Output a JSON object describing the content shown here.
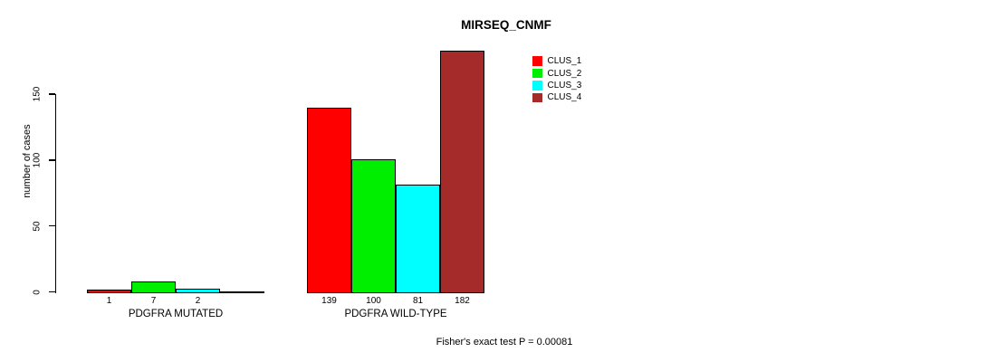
{
  "title": "MIRSEQ_CNMF",
  "y_axis": {
    "label": "number of cases",
    "ticks": [
      "0",
      "50",
      "100",
      "150"
    ]
  },
  "legend": [
    {
      "label": "CLUS_1",
      "color": "#ff0000"
    },
    {
      "label": "CLUS_2",
      "color": "#00ee00"
    },
    {
      "label": "CLUS_3",
      "color": "#00ffff"
    },
    {
      "label": "CLUS_4",
      "color": "#a52a2a"
    }
  ],
  "footer": "Fisher's exact test P = 0.00081",
  "chart_data": {
    "type": "bar",
    "title": "MIRSEQ_CNMF",
    "xlabel": "",
    "ylabel": "number of cases",
    "ylim": [
      0,
      150
    ],
    "grid": false,
    "legend_position": "top-right",
    "categories": [
      "PDGFRA MUTATED",
      "PDGFRA WILD-TYPE"
    ],
    "series": [
      {
        "name": "CLUS_1",
        "color": "#ff0000",
        "values": [
          1,
          139
        ]
      },
      {
        "name": "CLUS_2",
        "color": "#00ee00",
        "values": [
          7,
          100
        ]
      },
      {
        "name": "CLUS_3",
        "color": "#00ffff",
        "values": [
          2,
          81
        ]
      },
      {
        "name": "CLUS_4",
        "color": "#a52a2a",
        "values": [
          0,
          182
        ]
      }
    ],
    "bar_labels": [
      [
        "1",
        "7",
        "2",
        ""
      ],
      [
        "139",
        "100",
        "81",
        "182"
      ]
    ],
    "annotation": "Fisher's exact test P = 0.00081"
  }
}
